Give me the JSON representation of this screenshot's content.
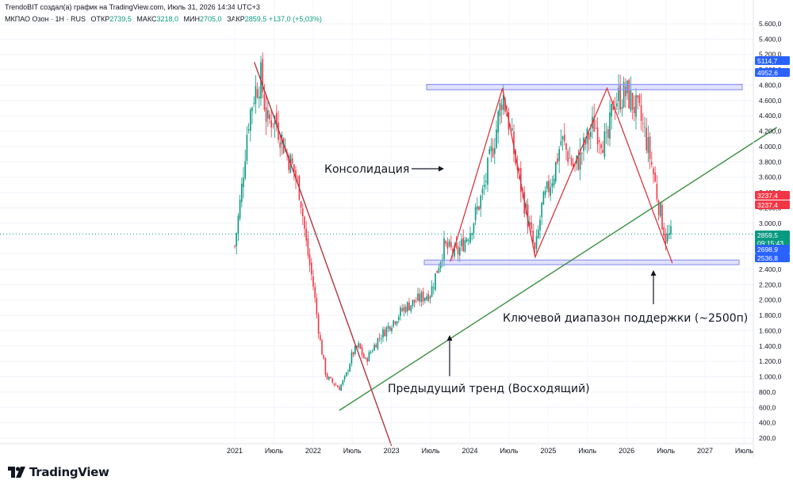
{
  "header": {
    "attribution": "TrendoBIT создал(а) график на TradingView.com, Июль 31, 2026 14:34 UTC+3",
    "symbol": "МКПАО Озон · 1Н · RUS",
    "open_label": "ОТКР",
    "open": "2739,5",
    "high_label": "МАКС",
    "high": "3218,0",
    "low_label": "МИН",
    "low": "2705,0",
    "close_label": "ЗАКР",
    "close": "2859,5",
    "change": "+137,0 (+5,03%)"
  },
  "annotations": {
    "consolidation": "Консолидация",
    "support": "Ключевой диапазон поддержки (~2500п)",
    "prev_trend": "Предыдущий тренд (Восходящий)"
  },
  "price_labels": [
    {
      "text": "5114,7",
      "color": "#2962ff"
    },
    {
      "text": "4952,6",
      "color": "#2962ff"
    },
    {
      "text": "3237,4",
      "color": "#f23645"
    },
    {
      "text": "3237,4",
      "color": "#f23645"
    },
    {
      "text": "2859,5",
      "color": "#089981"
    },
    {
      "text": "09:15:43",
      "color": "#089981"
    },
    {
      "text": "2698,9",
      "color": "#2962ff"
    },
    {
      "text": "2536,8",
      "color": "#2962ff"
    }
  ],
  "logo": {
    "name": "TradingView"
  },
  "colors": {
    "up": "#089981",
    "down": "#f23645",
    "trend_line": "#388e3c",
    "down_trend": "#b2353e",
    "zone": "#9598f5"
  },
  "chart_data": {
    "type": "candlestick",
    "y_axis_ticks": [
      "5.600,0",
      "5.400,0",
      "5.200,0",
      "5.000,0",
      "4.800,0",
      "4.600,0",
      "4.400,0",
      "4.200,0",
      "4.000,0",
      "3.800,0",
      "3.600,0",
      "3.400,0",
      "3.200,0",
      "3.000,0",
      "2.800,0",
      "2.600,0",
      "2.400,0",
      "2.200,0",
      "2.000,0",
      "1.800,0",
      "1.600,0",
      "1.400,0",
      "1.200,0",
      "1.000,0",
      "800,0",
      "600,0",
      "400,0",
      "200,0"
    ],
    "x_axis_ticks": [
      "2021",
      "Июль",
      "2022",
      "Июль",
      "2023",
      "Июль",
      "2024",
      "Июль",
      "2025",
      "Июль",
      "2026",
      "Июль",
      "2027",
      "Июль"
    ],
    "ylim": [
      200,
      5600
    ],
    "price_path": [
      [
        "2021-01",
        2700
      ],
      [
        "2021-02",
        3400
      ],
      [
        "2021-03",
        4300
      ],
      [
        "2021-04",
        4700
      ],
      [
        "2021-05",
        4900
      ],
      [
        "2021-06",
        4300
      ],
      [
        "2021-07",
        4400
      ],
      [
        "2021-09",
        3900
      ],
      [
        "2021-10",
        3700
      ],
      [
        "2021-11",
        3400
      ],
      [
        "2021-12",
        2700
      ],
      [
        "2022-01",
        2200
      ],
      [
        "2022-02",
        1500
      ],
      [
        "2022-03",
        1000
      ],
      [
        "2022-05",
        850
      ],
      [
        "2022-06",
        1000
      ],
      [
        "2022-07",
        1300
      ],
      [
        "2022-08",
        1400
      ],
      [
        "2022-09",
        1200
      ],
      [
        "2022-11",
        1500
      ],
      [
        "2023-01",
        1700
      ],
      [
        "2023-03",
        1900
      ],
      [
        "2023-05",
        2000
      ],
      [
        "2023-07",
        2100
      ],
      [
        "2023-09",
        2700
      ],
      [
        "2023-11",
        2600
      ],
      [
        "2024-01",
        2900
      ],
      [
        "2024-03",
        3400
      ],
      [
        "2024-05",
        4200
      ],
      [
        "2024-06",
        4700
      ],
      [
        "2024-07",
        4300
      ],
      [
        "2024-08",
        3800
      ],
      [
        "2024-10",
        3000
      ],
      [
        "2024-11",
        2600
      ],
      [
        "2024-12",
        3200
      ],
      [
        "2025-02",
        3700
      ],
      [
        "2025-03",
        4100
      ],
      [
        "2025-05",
        3700
      ],
      [
        "2025-06",
        3900
      ],
      [
        "2025-08",
        4300
      ],
      [
        "2025-10",
        4000
      ],
      [
        "2025-11",
        4600
      ],
      [
        "2026-01",
        4700
      ],
      [
        "2026-03",
        4400
      ],
      [
        "2026-04",
        4100
      ],
      [
        "2026-05",
        3700
      ],
      [
        "2026-06",
        3200
      ],
      [
        "2026-07",
        2800
      ],
      [
        "2026-07-31",
        2860
      ]
    ],
    "resistance_zone": [
      4740,
      4810
    ],
    "support_zone": [
      2460,
      2520
    ],
    "up_trend_line": [
      [
        "2022-05",
        560
      ],
      [
        "2027-12",
        4250
      ]
    ],
    "down_trend_line": [
      [
        "2021-04",
        5100
      ],
      [
        "2023-01",
        100
      ]
    ],
    "pattern_lines": [
      [
        [
          "2023-10",
          2500
        ],
        [
          "2024-06",
          4760
        ],
        [
          "2024-11",
          2560
        ],
        [
          "2025-10",
          4760
        ],
        [
          "2026-08",
          2480
        ]
      ]
    ],
    "last_price": 2859.5
  }
}
